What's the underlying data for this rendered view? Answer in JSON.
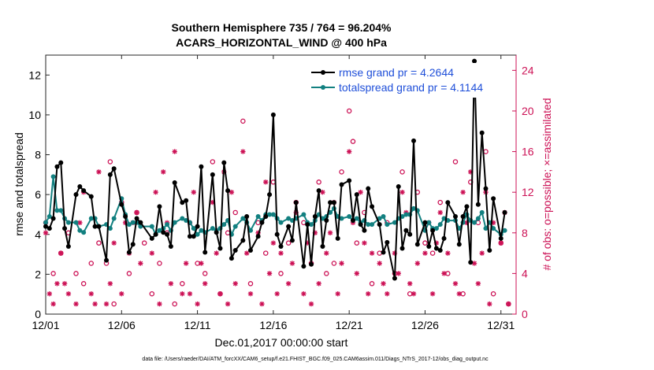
{
  "title_line1": "Southern Hemisphere 735 / 764 = 96.204%",
  "title_line2": "ACARS_HORIZONTAL_WIND @ 400 hPa",
  "xlabel": "Dec.01,2017 00:00:00 start",
  "footer": "data file: /Users/raeder/DAI/ATM_forcXX/CAM6_setup/f.e21.FHIST_BGC.f09_025.CAM6assim.011/Diags_NTrS_2017-12/obs_diag_output.nc",
  "chart_data": {
    "type": "line",
    "x_ticks": [
      {
        "day": 1,
        "label": "12/01"
      },
      {
        "day": 6,
        "label": "12/06"
      },
      {
        "day": 11,
        "label": "12/11"
      },
      {
        "day": 16,
        "label": "12/16"
      },
      {
        "day": 21,
        "label": "12/21"
      },
      {
        "day": 26,
        "label": "12/26"
      },
      {
        "day": 31,
        "label": "12/31"
      }
    ],
    "xlim": [
      1,
      32
    ],
    "left_axis": {
      "label": "rmse and totalspread",
      "ylim": [
        0,
        13
      ],
      "ticks": [
        0,
        2,
        4,
        6,
        8,
        10,
        12
      ]
    },
    "right_axis": {
      "label": "# of obs: o=possible; ×=assimilated",
      "ylim": [
        0,
        25.5
      ],
      "ticks": [
        0,
        4,
        8,
        12,
        16,
        20,
        24
      ],
      "color": "#cc1155"
    },
    "legend": [
      {
        "name": "rmse grand pr = 4.2644",
        "color": "#000000"
      },
      {
        "name": "totalspread grand pr = 4.1144",
        "color": "#128080"
      }
    ],
    "legend_placement": "top-right",
    "series": [
      {
        "name": "rmse",
        "color": "#000000",
        "x": [
          1.0,
          1.25,
          1.5,
          1.75,
          2.0,
          2.25,
          2.5,
          3.0,
          3.25,
          3.5,
          4.0,
          4.25,
          4.5,
          5.0,
          5.25,
          5.5,
          6.0,
          6.25,
          6.5,
          6.75,
          7.0,
          7.25,
          8.0,
          8.25,
          8.5,
          8.75,
          9.0,
          9.25,
          9.5,
          10.0,
          10.25,
          10.5,
          10.75,
          11.0,
          11.25,
          11.5,
          12.0,
          12.25,
          12.5,
          12.75,
          13.0,
          13.25,
          13.5,
          14.0,
          14.25,
          14.5,
          15.0,
          15.25,
          15.5,
          15.75,
          16.0,
          16.25,
          16.5,
          17.0,
          17.25,
          17.5,
          18.0,
          18.25,
          18.5,
          18.75,
          19.0,
          19.25,
          19.5,
          19.75,
          20.0,
          20.25,
          20.5,
          21.0,
          21.25,
          21.5,
          21.75,
          22.0,
          22.25,
          22.5,
          23.0,
          23.25,
          23.5,
          24.0,
          24.25,
          24.5,
          24.75,
          25.0,
          25.25,
          25.5,
          26.0,
          26.25,
          26.5,
          26.75,
          27.0,
          27.25,
          27.5,
          28.0,
          28.25,
          28.5,
          28.75,
          29.0,
          29.25,
          29.5,
          29.75,
          30.0,
          30.25,
          30.5,
          31.0,
          31.25
        ],
        "y": [
          4.4,
          4.3,
          4.8,
          7.4,
          7.6,
          4.3,
          3.4,
          6.0,
          6.4,
          6.2,
          5.9,
          4.4,
          4.4,
          2.7,
          7.0,
          7.3,
          5.5,
          4.9,
          3.1,
          3.5,
          4.8,
          4.6,
          3.8,
          4.0,
          5.4,
          4.1,
          4.0,
          3.4,
          6.6,
          5.6,
          5.7,
          3.9,
          3.9,
          4.4,
          7.4,
          3.1,
          7.0,
          4.1,
          3.3,
          7.6,
          6.2,
          2.8,
          3.2,
          3.7,
          4.9,
          3.2,
          3.9,
          4.6,
          4.9,
          6.0,
          10.0,
          4.0,
          3.4,
          4.4,
          3.7,
          5.6,
          2.4,
          4.5,
          2.5,
          4.9,
          6.2,
          3.4,
          4.7,
          5.6,
          5.6,
          3.8,
          6.5,
          6.7,
          4.7,
          6.0,
          4.5,
          4.2,
          6.3,
          5.4,
          4.5,
          3.1,
          3.6,
          1.8,
          6.4,
          3.3,
          4.2,
          4.0,
          8.7,
          3.5,
          4.6,
          3.4,
          4.2,
          3.3,
          3.2,
          3.8,
          5.6,
          4.9,
          3.5,
          4.9,
          5.4,
          2.6,
          12.7,
          5.5,
          9.1,
          6.3,
          3.2,
          5.8,
          3.8,
          5.1
        ]
      },
      {
        "name": "totalspread",
        "color": "#128080",
        "x": [
          1.0,
          1.25,
          1.5,
          1.75,
          2.0,
          2.25,
          2.5,
          3.0,
          3.25,
          3.5,
          4.0,
          4.25,
          4.5,
          5.0,
          5.25,
          5.5,
          6.0,
          6.25,
          6.5,
          6.75,
          7.0,
          7.25,
          8.0,
          8.25,
          8.5,
          8.75,
          9.0,
          9.25,
          9.5,
          10.0,
          10.25,
          10.5,
          10.75,
          11.0,
          11.25,
          11.5,
          12.0,
          12.25,
          12.5,
          12.75,
          13.0,
          13.25,
          13.5,
          14.0,
          14.25,
          14.5,
          15.0,
          15.25,
          15.5,
          15.75,
          16.0,
          16.25,
          16.5,
          17.0,
          17.25,
          17.5,
          18.0,
          18.25,
          18.5,
          18.75,
          19.0,
          19.25,
          19.5,
          19.75,
          20.0,
          20.25,
          20.5,
          21.0,
          21.25,
          21.5,
          21.75,
          22.0,
          22.25,
          22.5,
          23.0,
          23.25,
          23.5,
          24.0,
          24.25,
          24.5,
          24.75,
          25.0,
          25.25,
          25.5,
          26.0,
          26.25,
          26.5,
          26.75,
          27.0,
          27.25,
          27.5,
          28.0,
          28.25,
          28.5,
          28.75,
          29.0,
          29.25,
          29.5,
          29.75,
          30.0,
          30.25,
          30.5,
          31.0,
          31.25
        ],
        "y": [
          4.6,
          4.9,
          6.9,
          5.2,
          5.2,
          4.8,
          4.6,
          4.6,
          4.2,
          4.1,
          4.8,
          4.8,
          4.4,
          4.5,
          4.3,
          4.8,
          5.8,
          5.0,
          4.5,
          4.6,
          4.6,
          4.4,
          4.4,
          4.0,
          4.2,
          4.3,
          4.5,
          4.2,
          4.6,
          4.8,
          4.7,
          4.6,
          4.3,
          4.0,
          4.2,
          4.1,
          4.3,
          4.2,
          4.3,
          4.5,
          4.7,
          4.0,
          4.4,
          4.8,
          4.6,
          4.2,
          4.9,
          4.7,
          5.0,
          5.0,
          5.0,
          4.8,
          4.6,
          4.8,
          4.7,
          4.8,
          5.0,
          4.6,
          4.5,
          4.7,
          5.0,
          4.8,
          4.9,
          5.1,
          5.3,
          4.9,
          4.8,
          4.9,
          4.7,
          4.8,
          4.6,
          4.7,
          4.5,
          4.5,
          4.8,
          4.9,
          4.5,
          4.6,
          4.8,
          4.9,
          5.0,
          5.0,
          5.3,
          5.2,
          4.2,
          4.6,
          4.3,
          4.3,
          4.5,
          4.8,
          4.7,
          4.7,
          4.3,
          4.6,
          5.0,
          4.7,
          4.6,
          4.8,
          5.1,
          4.3,
          4.6,
          4.3,
          4.0,
          4.2
        ]
      }
    ],
    "obs_possible": {
      "x": [
        1.0,
        1.5,
        2.0,
        2.5,
        3.0,
        3.5,
        4.0,
        4.5,
        5.0,
        5.25,
        5.5,
        6.0,
        6.5,
        7.0,
        7.5,
        8.0,
        8.5,
        9.0,
        9.5,
        10.0,
        10.5,
        11.0,
        11.5,
        12.0,
        12.5,
        13.0,
        13.5,
        14.0,
        14.5,
        15.0,
        15.5,
        16.0,
        16.5,
        17.0,
        17.5,
        18.0,
        18.5,
        19.0,
        19.5,
        20.0,
        20.5,
        21.0,
        21.25,
        21.5,
        22.0,
        22.5,
        23.0,
        23.5,
        24.0,
        24.5,
        25.0,
        25.5,
        26.0,
        26.5,
        27.0,
        27.5,
        28.0,
        28.5,
        29.0,
        29.5,
        30.0,
        30.5,
        31.0,
        31.5
      ],
      "y": [
        9,
        4,
        6,
        8,
        4,
        3,
        5,
        7,
        5,
        15,
        1,
        11,
        4,
        10,
        7,
        2,
        5,
        8,
        1,
        3,
        9,
        5,
        4,
        15,
        2,
        8,
        10,
        19,
        3,
        9,
        6,
        13,
        4,
        7,
        11,
        9,
        5,
        13,
        4,
        5,
        14,
        20,
        17,
        7,
        10,
        3,
        6,
        9,
        4,
        14,
        2,
        12,
        7,
        6,
        11,
        4,
        15,
        2,
        13,
        9,
        16,
        2,
        7,
        1
      ]
    },
    "obs_assimilated": {
      "x": [
        1.0,
        1.25,
        1.5,
        1.75,
        2.0,
        2.25,
        2.5,
        3.0,
        3.25,
        3.5,
        4.0,
        4.25,
        4.5,
        5.0,
        5.25,
        5.5,
        6.0,
        6.25,
        6.5,
        6.75,
        7.0,
        7.25,
        8.0,
        8.25,
        8.5,
        8.75,
        9.0,
        9.25,
        9.5,
        10.0,
        10.25,
        10.5,
        10.75,
        11.0,
        11.25,
        11.5,
        12.0,
        12.25,
        12.5,
        12.75,
        13.0,
        13.25,
        13.5,
        14.0,
        14.25,
        14.5,
        15.0,
        15.25,
        15.5,
        15.75,
        16.0,
        16.25,
        16.5,
        17.0,
        17.25,
        17.5,
        18.0,
        18.25,
        18.5,
        18.75,
        19.0,
        19.25,
        19.5,
        19.75,
        20.0,
        20.25,
        20.5,
        21.0,
        21.25,
        21.5,
        21.75,
        22.0,
        22.25,
        22.5,
        23.0,
        23.25,
        23.5,
        24.0,
        24.25,
        24.5,
        24.75,
        25.0,
        25.25,
        25.5,
        26.0,
        26.25,
        26.5,
        26.75,
        27.0,
        27.25,
        27.5,
        28.0,
        28.25,
        28.5,
        28.75,
        29.0,
        29.25,
        29.5,
        29.75,
        30.0,
        30.25,
        30.5,
        31.0,
        31.25,
        31.5
      ],
      "y": [
        8,
        2,
        1,
        3,
        6,
        3,
        2,
        1,
        9,
        12,
        2,
        1,
        14,
        1,
        3,
        7,
        2,
        9,
        6,
        9,
        10,
        5,
        6,
        12,
        1,
        14,
        9,
        3,
        16,
        2,
        5,
        2,
        12,
        1,
        5,
        3,
        11,
        6,
        2,
        14,
        1,
        12,
        3,
        16,
        6,
        2,
        8,
        1,
        13,
        4,
        7,
        2,
        6,
        3,
        5,
        10,
        2,
        7,
        1,
        8,
        3,
        12,
        6,
        8,
        11,
        2,
        5,
        16,
        9,
        4,
        12,
        7,
        2,
        6,
        5,
        3,
        2,
        6,
        4,
        12,
        10,
        3,
        2,
        5,
        6,
        9,
        2,
        7,
        10,
        4,
        6,
        3,
        2,
        12,
        9,
        14,
        5,
        3,
        6,
        12,
        1,
        9,
        7,
        10,
        1
      ]
    }
  }
}
